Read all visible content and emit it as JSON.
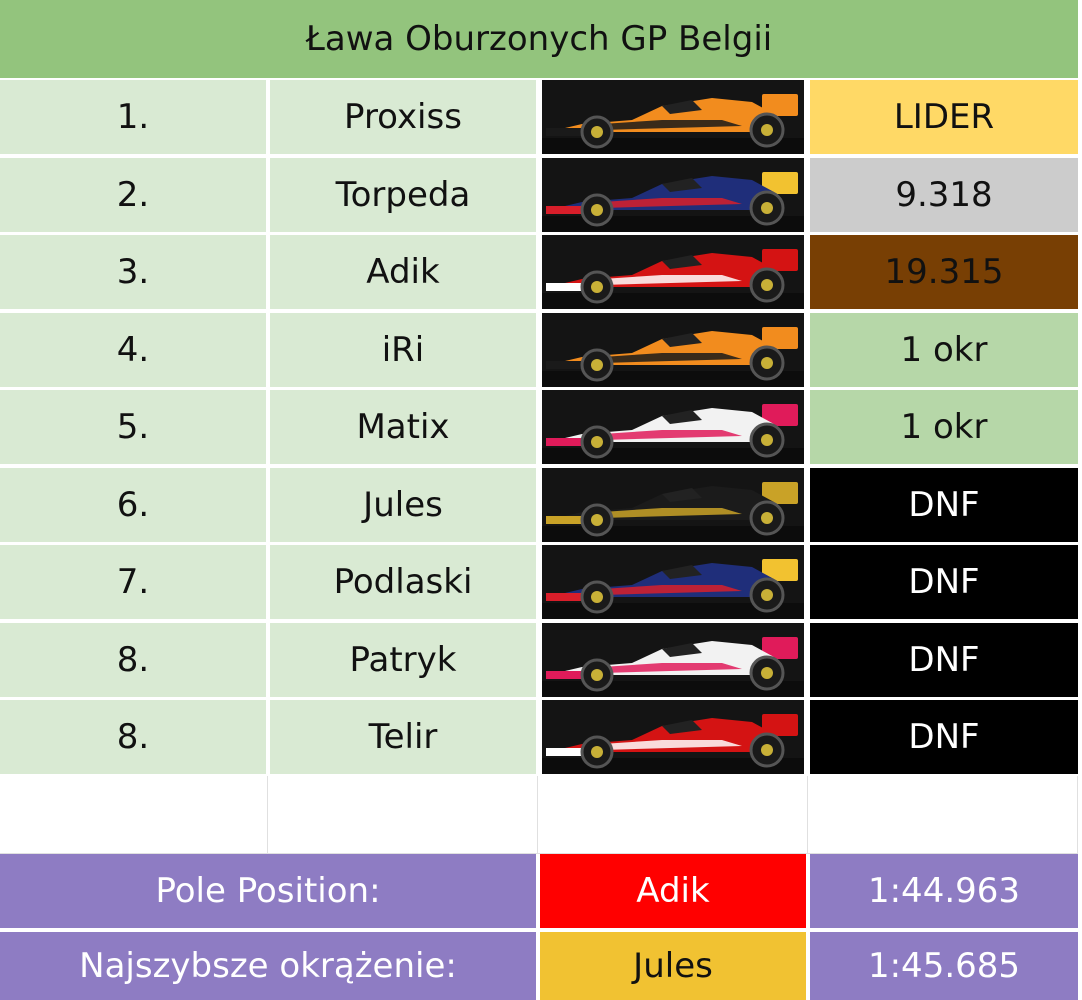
{
  "title": "Ława Oburzonych GP Belgii",
  "rows": [
    {
      "pos": "1.",
      "name": "Proxiss",
      "car": "mclaren-orange-car",
      "gap": "LIDER",
      "gap_style": "gold"
    },
    {
      "pos": "2.",
      "name": "Torpeda",
      "car": "redbull-navy-car",
      "gap": "9.318",
      "gap_style": "silver"
    },
    {
      "pos": "3.",
      "name": "Adik",
      "car": "ferrari-red-car",
      "gap": "19.315",
      "gap_style": "bronze"
    },
    {
      "pos": "4.",
      "name": "iRi",
      "car": "mclaren-orange-car",
      "gap": "1 okr",
      "gap_style": "green"
    },
    {
      "pos": "5.",
      "name": "Matix",
      "car": "haas-white-car",
      "gap": "1 okr",
      "gap_style": "green"
    },
    {
      "pos": "6.",
      "name": "Jules",
      "car": "lotus-black-car",
      "gap": "DNF",
      "gap_style": "black"
    },
    {
      "pos": "7.",
      "name": "Podlaski",
      "car": "redbull-navy-car",
      "gap": "DNF",
      "gap_style": "black"
    },
    {
      "pos": "8.",
      "name": "Patryk",
      "car": "haas-white-car",
      "gap": "DNF",
      "gap_style": "black"
    },
    {
      "pos": "8.",
      "name": "Telir",
      "car": "ferrari-red-car",
      "gap": "DNF",
      "gap_style": "black"
    }
  ],
  "footer": {
    "pole": {
      "label": "Pole Position:",
      "driver": "Adik",
      "time": "1:44.963"
    },
    "fastest": {
      "label": "Najszybsze okrążenie:",
      "driver": "Jules",
      "time": "1:45.685"
    }
  },
  "colors": {
    "title_bg": "#93c47d",
    "row_bg": "#d9ead3",
    "gold": "#ffd966",
    "silver": "#cccccc",
    "bronze": "#783f04",
    "green": "#b6d7a8",
    "black": "#000000",
    "purple": "#8e7cc3",
    "red": "#ff0000",
    "yellow": "#f1c232"
  },
  "car_liveries": {
    "mclaren-orange-car": {
      "body": "#f28c1e",
      "accent": "#1a1a1a",
      "wing": "#f28c1e"
    },
    "redbull-navy-car": {
      "body": "#1f2e7a",
      "accent": "#d91e2a",
      "wing": "#f2c230"
    },
    "ferrari-red-car": {
      "body": "#d41313",
      "accent": "#ffffff",
      "wing": "#d41313"
    },
    "haas-white-car": {
      "body": "#f2f2f2",
      "accent": "#e01b5a",
      "wing": "#e01b5a"
    },
    "lotus-black-car": {
      "body": "#1b1b1b",
      "accent": "#c9a227",
      "wing": "#c9a227"
    }
  }
}
